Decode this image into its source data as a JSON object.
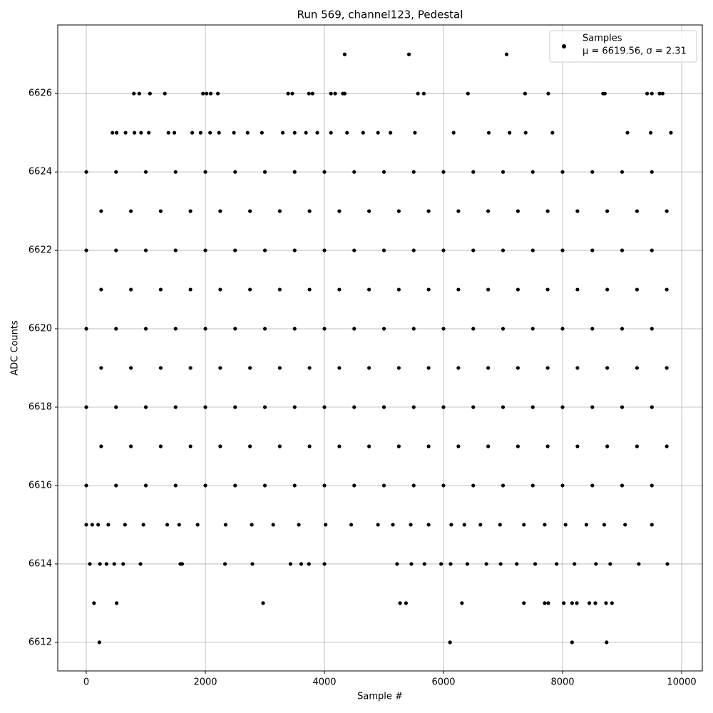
{
  "chart_data": {
    "type": "scatter",
    "title": "Run 569, channel123, Pedestal",
    "x_label": "Sample #",
    "y_label": "ADC Counts",
    "xlim": [
      -479,
      10347
    ],
    "ylim": [
      6611.27,
      6627.75
    ],
    "xticks": [
      0,
      2000,
      4000,
      6000,
      8000,
      10000
    ],
    "yticks": [
      6612,
      6614,
      6616,
      6618,
      6620,
      6622,
      6624,
      6626
    ],
    "grid": true,
    "legend": "upper right",
    "legend_stats": "μ = 6619.56, σ = 2.31",
    "series": [
      {
        "name": "Samples",
        "color": "#000000",
        "x": [
          4340,
          5420,
          7060,
          220,
          6110,
          8160,
          8740,
          130,
          510,
          2970,
          5270,
          5370,
          6310,
          7350,
          7700,
          7760,
          8020,
          8160,
          8240,
          8450,
          8550,
          8730,
          8830,
          800,
          890,
          1070,
          1320,
          1960,
          2020,
          2090,
          2210,
          3390,
          3460,
          3740,
          3800,
          4110,
          4180,
          4310,
          4340,
          5570,
          5670,
          6410,
          7370,
          7760,
          8680,
          8710,
          9420,
          9500,
          9630,
          9680,
          60,
          230,
          340,
          470,
          620,
          910,
          1580,
          1610,
          2330,
          2790,
          3430,
          3610,
          3740,
          4000,
          5220,
          5460,
          5680,
          5960,
          6120,
          6400,
          6720,
          6960,
          7230,
          7540,
          7900,
          8200,
          8560,
          8800,
          9280,
          9760,
          440,
          510,
          660,
          810,
          920,
          1050,
          1380,
          1480,
          1780,
          1920,
          2080,
          2230,
          2480,
          2710,
          2950,
          3300,
          3500,
          3690,
          3880,
          4110,
          4380,
          4650,
          4900,
          5110,
          5520,
          6170,
          6760,
          7110,
          7380,
          7830,
          9090,
          9480,
          9820,
          0,
          100,
          200,
          370,
          650,
          960,
          1360,
          1560,
          1870,
          2340,
          2780,
          3140,
          3570,
          4020,
          4450,
          4900,
          5150,
          5450,
          5750,
          6130,
          6350,
          6620,
          6950,
          7350,
          7700,
          8050,
          8400,
          8700,
          9050,
          9500,
          0,
          500,
          1000,
          1500,
          2000,
          2500,
          3000,
          3500,
          4000,
          4500,
          5000,
          5500,
          6000,
          6500,
          7000,
          7500,
          8000,
          8500,
          9000,
          9500,
          250,
          750,
          1250,
          1750,
          2250,
          2750,
          3250,
          3750,
          4250,
          4750,
          5250,
          5750,
          6250,
          6750,
          7250,
          7750,
          8250,
          8750,
          9250,
          9750,
          0,
          500,
          1000,
          1500,
          2000,
          2500,
          3000,
          3500,
          4000,
          4500,
          5000,
          5500,
          6000,
          6500,
          7000,
          7500,
          8000,
          8500,
          9000,
          9500,
          250,
          750,
          1250,
          1750,
          2250,
          2750,
          3250,
          3750,
          4250,
          4750,
          5250,
          5750,
          6250,
          6750,
          7250,
          7750,
          8250,
          8750,
          9250,
          9750,
          0,
          500,
          1000,
          1500,
          2000,
          2500,
          3000,
          3500,
          4000,
          4500,
          5000,
          5500,
          6000,
          6500,
          7000,
          7500,
          8000,
          8500,
          9000,
          9500,
          250,
          750,
          1250,
          1750,
          2250,
          2750,
          3250,
          3750,
          4250,
          4750,
          5250,
          5750,
          6250,
          6750,
          7250,
          7750,
          8250,
          8750,
          9250,
          9750,
          0,
          500,
          1000,
          1500,
          2000,
          2500,
          3000,
          3500,
          4000,
          4500,
          5000,
          5500,
          6000,
          6500,
          7000,
          7500,
          8000,
          8500,
          9000,
          9500,
          250,
          750,
          1250,
          1750,
          2250,
          2750,
          3250,
          3750,
          4250,
          4750,
          5250,
          5750,
          6250,
          6750,
          7250,
          7750,
          8250,
          8750,
          9250,
          9750,
          0,
          500,
          1000,
          1500,
          2000,
          2500,
          3000,
          3500,
          4000,
          4500,
          5000,
          5500,
          6000,
          6500,
          7000,
          7500,
          8000,
          8500,
          9000,
          9500
        ],
        "values": [
          6627,
          6627,
          6627,
          6612,
          6612,
          6612,
          6612,
          6613,
          6613,
          6613,
          6613,
          6613,
          6613,
          6613,
          6613,
          6613,
          6613,
          6613,
          6613,
          6613,
          6613,
          6613,
          6613,
          6626,
          6626,
          6626,
          6626,
          6626,
          6626,
          6626,
          6626,
          6626,
          6626,
          6626,
          6626,
          6626,
          6626,
          6626,
          6626,
          6626,
          6626,
          6626,
          6626,
          6626,
          6626,
          6626,
          6626,
          6626,
          6626,
          6626,
          6614,
          6614,
          6614,
          6614,
          6614,
          6614,
          6614,
          6614,
          6614,
          6614,
          6614,
          6614,
          6614,
          6614,
          6614,
          6614,
          6614,
          6614,
          6614,
          6614,
          6614,
          6614,
          6614,
          6614,
          6614,
          6614,
          6614,
          6614,
          6614,
          6614,
          6625,
          6625,
          6625,
          6625,
          6625,
          6625,
          6625,
          6625,
          6625,
          6625,
          6625,
          6625,
          6625,
          6625,
          6625,
          6625,
          6625,
          6625,
          6625,
          6625,
          6625,
          6625,
          6625,
          6625,
          6625,
          6625,
          6625,
          6625,
          6625,
          6625,
          6625,
          6625,
          6625,
          6615,
          6615,
          6615,
          6615,
          6615,
          6615,
          6615,
          6615,
          6615,
          6615,
          6615,
          6615,
          6615,
          6615,
          6615,
          6615,
          6615,
          6615,
          6615,
          6615,
          6615,
          6615,
          6615,
          6615,
          6615,
          6615,
          6615,
          6615,
          6615,
          6615,
          6616,
          6616,
          6616,
          6616,
          6616,
          6616,
          6616,
          6616,
          6616,
          6616,
          6616,
          6616,
          6616,
          6616,
          6616,
          6616,
          6616,
          6616,
          6616,
          6616,
          6617,
          6617,
          6617,
          6617,
          6617,
          6617,
          6617,
          6617,
          6617,
          6617,
          6617,
          6617,
          6617,
          6617,
          6617,
          6617,
          6617,
          6617,
          6617,
          6617,
          6618,
          6618,
          6618,
          6618,
          6618,
          6618,
          6618,
          6618,
          6618,
          6618,
          6618,
          6618,
          6618,
          6618,
          6618,
          6618,
          6618,
          6618,
          6618,
          6618,
          6619,
          6619,
          6619,
          6619,
          6619,
          6619,
          6619,
          6619,
          6619,
          6619,
          6619,
          6619,
          6619,
          6619,
          6619,
          6619,
          6619,
          6619,
          6619,
          6619,
          6620,
          6620,
          6620,
          6620,
          6620,
          6620,
          6620,
          6620,
          6620,
          6620,
          6620,
          6620,
          6620,
          6620,
          6620,
          6620,
          6620,
          6620,
          6620,
          6620,
          6621,
          6621,
          6621,
          6621,
          6621,
          6621,
          6621,
          6621,
          6621,
          6621,
          6621,
          6621,
          6621,
          6621,
          6621,
          6621,
          6621,
          6621,
          6621,
          6621,
          6622,
          6622,
          6622,
          6622,
          6622,
          6622,
          6622,
          6622,
          6622,
          6622,
          6622,
          6622,
          6622,
          6622,
          6622,
          6622,
          6622,
          6622,
          6622,
          6622,
          6623,
          6623,
          6623,
          6623,
          6623,
          6623,
          6623,
          6623,
          6623,
          6623,
          6623,
          6623,
          6623,
          6623,
          6623,
          6623,
          6623,
          6623,
          6623,
          6623,
          6624,
          6624,
          6624,
          6624,
          6624,
          6624,
          6624,
          6624,
          6624,
          6624,
          6624,
          6624,
          6624,
          6624,
          6624,
          6624,
          6624,
          6624,
          6624,
          6624
        ]
      }
    ]
  }
}
